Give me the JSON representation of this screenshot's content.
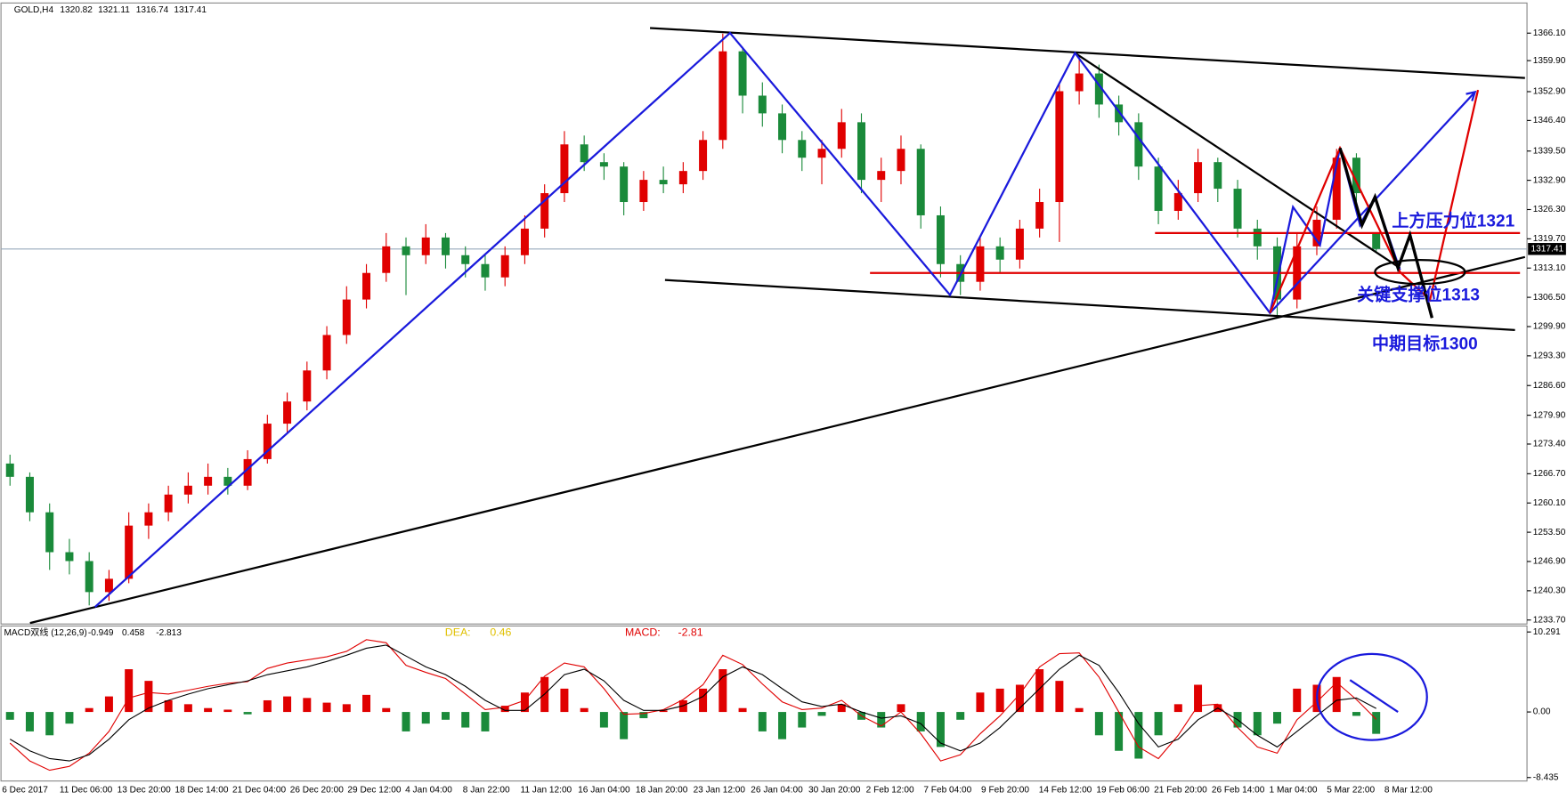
{
  "chart_data": [
    {
      "type": "candlestick",
      "title": "GOLD,H4",
      "up_color": "#e00000",
      "down_color": "#1a8a3a",
      "open": [
        1269,
        1266,
        1258,
        1249,
        1247,
        1240,
        1243,
        1255,
        1258,
        1262,
        1264,
        1266,
        1264,
        1270,
        1278,
        1283,
        1290,
        1298,
        1306,
        1312,
        1318,
        1316,
        1320,
        1316,
        1314,
        1311,
        1316,
        1322,
        1330,
        1341,
        1337,
        1336,
        1328,
        1333,
        1332,
        1335,
        1342,
        1362,
        1352,
        1348,
        1342,
        1338,
        1340,
        1346,
        1333,
        1335,
        1340,
        1325,
        1314,
        1310,
        1318,
        1315,
        1322,
        1328,
        1353,
        1357,
        1350,
        1346,
        1336,
        1326,
        1330,
        1337,
        1331,
        1322,
        1318,
        1306,
        1318,
        1324,
        1338,
        1320.82
      ],
      "high": [
        1271,
        1267,
        1260,
        1252,
        1249,
        1245,
        1258,
        1260,
        1264,
        1267,
        1269,
        1268,
        1272,
        1280,
        1285,
        1292,
        1300,
        1309,
        1314,
        1321,
        1320,
        1323,
        1321,
        1318,
        1316,
        1318,
        1325,
        1332,
        1344,
        1343,
        1339,
        1337,
        1335,
        1336,
        1337,
        1344,
        1366,
        1363,
        1355,
        1350,
        1344,
        1342,
        1349,
        1348,
        1338,
        1343,
        1341,
        1327,
        1316,
        1320,
        1320,
        1324,
        1331,
        1355,
        1361,
        1359,
        1352,
        1348,
        1338,
        1333,
        1340,
        1338,
        1333,
        1324,
        1320,
        1321,
        1327,
        1340,
        1339,
        1321.11
      ],
      "low": [
        1264,
        1256,
        1245,
        1244,
        1237,
        1238,
        1242,
        1252,
        1256,
        1260,
        1262,
        1262,
        1263,
        1269,
        1276,
        1281,
        1288,
        1296,
        1304,
        1310,
        1307,
        1314,
        1313,
        1311,
        1308,
        1309,
        1314,
        1320,
        1328,
        1335,
        1333,
        1325,
        1326,
        1330,
        1330,
        1333,
        1340,
        1348,
        1345,
        1339,
        1335,
        1332,
        1338,
        1330,
        1328,
        1332,
        1322,
        1311,
        1307,
        1308,
        1312,
        1313,
        1320,
        1319,
        1350,
        1347,
        1343,
        1333,
        1323,
        1324,
        1328,
        1328,
        1320,
        1315,
        1302,
        1304,
        1316,
        1322,
        1326,
        1316.74
      ],
      "close": [
        1266,
        1258,
        1249,
        1247,
        1240,
        1243,
        1255,
        1258,
        1262,
        1264,
        1266,
        1264,
        1270,
        1278,
        1283,
        1290,
        1298,
        1306,
        1312,
        1318,
        1316,
        1320,
        1316,
        1314,
        1311,
        1316,
        1322,
        1330,
        1341,
        1337,
        1336,
        1328,
        1333,
        1332,
        1335,
        1342,
        1362,
        1352,
        1348,
        1342,
        1338,
        1340,
        1346,
        1333,
        1335,
        1340,
        1325,
        1314,
        1310,
        1318,
        1315,
        1322,
        1328,
        1353,
        1357,
        1350,
        1346,
        1336,
        1326,
        1330,
        1337,
        1331,
        1322,
        1318,
        1306,
        1318,
        1324,
        1338,
        1330,
        1317.41
      ],
      "ylim": [
        1232.8,
        1372.9
      ],
      "yticks": [
        {
          "value": 1366.1,
          "label": "1366.10"
        },
        {
          "value": 1359.9,
          "label": "1359.90"
        },
        {
          "value": 1352.9,
          "label": "1352.90"
        },
        {
          "value": 1346.4,
          "label": "1346.40"
        },
        {
          "value": 1339.5,
          "label": "1339.50"
        },
        {
          "value": 1332.9,
          "label": "1332.90"
        },
        {
          "value": 1326.3,
          "label": "1326.30"
        },
        {
          "value": 1319.7,
          "label": "1319.70"
        },
        {
          "value": 1313.1,
          "label": "1313.10"
        },
        {
          "value": 1306.5,
          "label": "1306.50"
        },
        {
          "value": 1299.9,
          "label": "1299.90"
        },
        {
          "value": 1293.3,
          "label": "1293.30"
        },
        {
          "value": 1286.6,
          "label": "1286.60"
        },
        {
          "value": 1279.9,
          "label": "1279.90"
        },
        {
          "value": 1273.4,
          "label": "1273.40"
        },
        {
          "value": 1266.7,
          "label": "1266.70"
        },
        {
          "value": 1260.1,
          "label": "1260.10"
        },
        {
          "value": 1253.5,
          "label": "1253.50"
        },
        {
          "value": 1246.9,
          "label": "1246.90"
        },
        {
          "value": 1240.3,
          "label": "1240.30"
        },
        {
          "value": 1233.7,
          "label": "1233.70"
        }
      ],
      "xtick_labels": [
        "6 Dec 2017",
        "11 Dec 06:00",
        "13 Dec 20:00",
        "18 Dec 14:00",
        "21 Dec 04:00",
        "26 Dec 20:00",
        "29 Dec 12:00",
        "4 Jan 04:00",
        "8 Jan 22:00",
        "11 Jan 12:00",
        "16 Jan 04:00",
        "18 Jan 20:00",
        "23 Jan 12:00",
        "26 Jan 04:00",
        "30 Jan 20:00",
        "2 Feb 12:00",
        "7 Feb 04:00",
        "9 Feb 20:00",
        "14 Feb 12:00",
        "19 Feb 06:00",
        "21 Feb 20:00",
        "26 Feb 14:00",
        "1 Mar 04:00",
        "5 Mar 22:00",
        "8 Mar 12:00"
      ],
      "annotations": [
        "上方压力位1321",
        "关键支撑位1313",
        "中期目标1300"
      ]
    },
    {
      "type": "macd",
      "title": "MACD双线 (12,26,9)",
      "dea_label": "DEA:",
      "dea_value": "0.46",
      "macd_label": "MACD:",
      "macd_value": "-2.81",
      "series": [
        {
          "name": "histogram",
          "up_color": "#e00000",
          "down_color": "#1a8a3a",
          "values": [
            -1.0,
            -2.5,
            -3.0,
            -1.5,
            0.5,
            2.0,
            5.5,
            4.0,
            1.5,
            1.0,
            0.5,
            0.3,
            -0.3,
            1.5,
            2.0,
            1.8,
            1.2,
            1.0,
            2.2,
            0.5,
            -2.5,
            -1.5,
            -1.0,
            -2.0,
            -2.5,
            0.8,
            2.5,
            4.5,
            3.0,
            0.5,
            -2.0,
            -3.5,
            -0.8,
            0.2,
            1.5,
            3.0,
            5.5,
            0.5,
            -2.5,
            -3.5,
            -2.0,
            -0.5,
            1.0,
            -1.0,
            -2.0,
            1.0,
            -2.5,
            -4.5,
            -1.0,
            2.5,
            3.0,
            3.5,
            5.5,
            4.0,
            0.5,
            -3.0,
            -5.0,
            -6.0,
            -3.0,
            1.0,
            3.5,
            1.0,
            -2.0,
            -3.0,
            -1.5,
            3.0,
            3.5,
            4.5,
            -0.5,
            -2.813
          ]
        },
        {
          "name": "macd",
          "color": "#e00000",
          "values": [
            -4,
            -6.3,
            -7.5,
            -7,
            -5.3,
            -2.5,
            1.8,
            2.5,
            2.3,
            2.8,
            3.3,
            3.7,
            3.9,
            5.6,
            6.3,
            6.7,
            7.1,
            7.8,
            9.3,
            8.9,
            6,
            5.1,
            4.3,
            2.3,
            0.3,
            0.6,
            1.5,
            4.6,
            6.3,
            5.8,
            3,
            -0.3,
            -0.2,
            0.3,
            1.6,
            3.5,
            7.3,
            6.1,
            3.6,
            1.3,
            0.3,
            0.5,
            1.5,
            -0.5,
            -1.8,
            0,
            -2.8,
            -6.3,
            -5.5,
            -2.8,
            -0.5,
            2.3,
            5.8,
            7.5,
            7.6,
            4.5,
            0,
            -4.5,
            -6,
            -3,
            0.8,
            1,
            -2,
            -4.5,
            -5.3,
            -1,
            1.3,
            3.8,
            1.6,
            -0.949
          ]
        },
        {
          "name": "signal",
          "color": "#000000",
          "values": [
            -3.5,
            -5,
            -6,
            -6.3,
            -5.5,
            -3.5,
            -1,
            0.5,
            1.5,
            2.3,
            3,
            3.5,
            4,
            4.8,
            5.3,
            5.8,
            6.5,
            7.3,
            8.2,
            8.6,
            7.2,
            5.8,
            4.8,
            3.3,
            1.5,
            0.2,
            0.2,
            2.3,
            4.8,
            5.5,
            4,
            1.5,
            0.2,
            0.2,
            0.8,
            2,
            4.5,
            5.8,
            4.8,
            3,
            1.3,
            0.7,
            1,
            0,
            -0.8,
            -0.5,
            -1.5,
            -4,
            -5,
            -4,
            -2,
            0.5,
            3,
            5.5,
            7.3,
            6,
            2.5,
            -1.5,
            -4.5,
            -3.5,
            -1,
            0.5,
            -1,
            -3,
            -4.5,
            -2.5,
            -0.5,
            1.5,
            1.8,
            0.458
          ]
        }
      ],
      "ylim": [
        -8.88,
        11.06
      ],
      "yticks": [
        10.291,
        {
          "value": 0,
          "label": "0.00"
        },
        -8.435
      ]
    }
  ]
}
